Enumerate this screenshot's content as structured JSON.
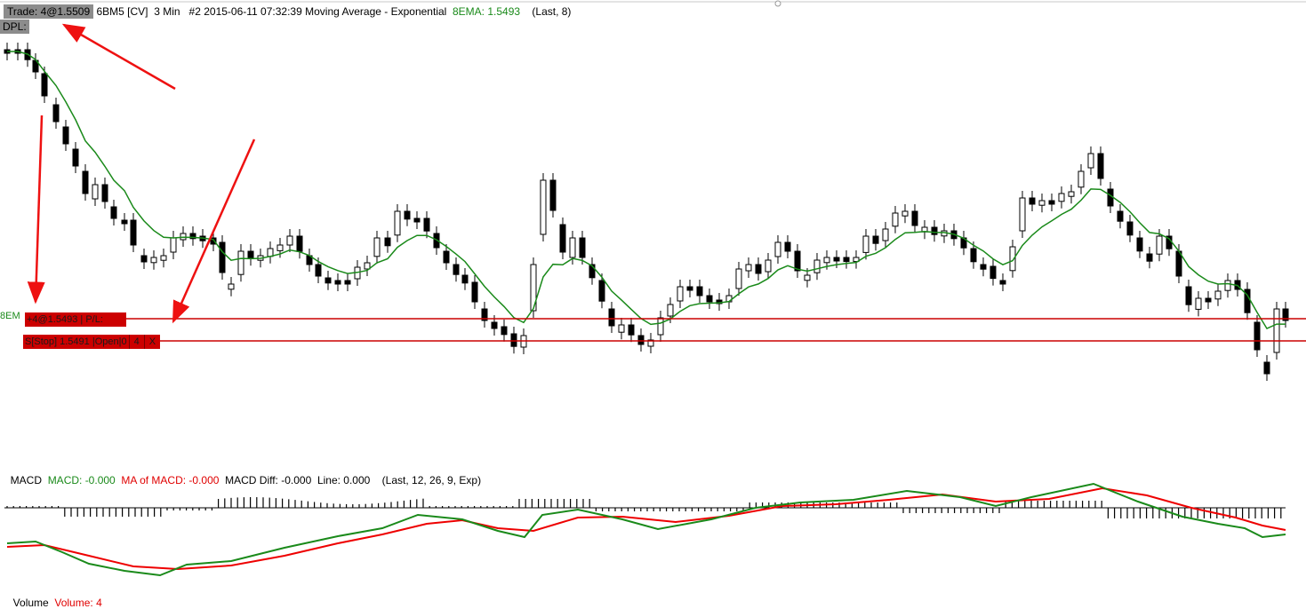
{
  "header": {
    "trade": "Trade: 4@1.5509",
    "instrument": "6BM5 [CV]",
    "interval": "3 Min",
    "bar_info": "#2 2015-06-11 07:32:39",
    "indicator": "Moving Average - Exponential",
    "ema_value": "8EMA: 1.5493",
    "ema_params": "(Last, 8)"
  },
  "dpl_label": "DPL:",
  "ema_left_label": "8EM",
  "position_tag": "+4@1.5493 | P/L:",
  "stop_tag": {
    "label": "S[Stop] 1.5491 |Open|0",
    "qty": "4",
    "close": "X"
  },
  "macd": {
    "title": "MACD",
    "macd_value": "MACD: -0.000",
    "ma_value": "MA of MACD: -0.000",
    "diff_value": "MACD Diff: -0.000",
    "line_value": "Line: 0.000",
    "params": "(Last, 12, 26, 9, Exp)"
  },
  "volume": {
    "title": "Volume",
    "value": "Volume: 4"
  },
  "colors": {
    "ema": "#1a8a1a",
    "macd": "#1a8a1a",
    "macd_ma": "#ee0000",
    "order_line": "#cc0000",
    "annotation": "#ee1111"
  }
}
